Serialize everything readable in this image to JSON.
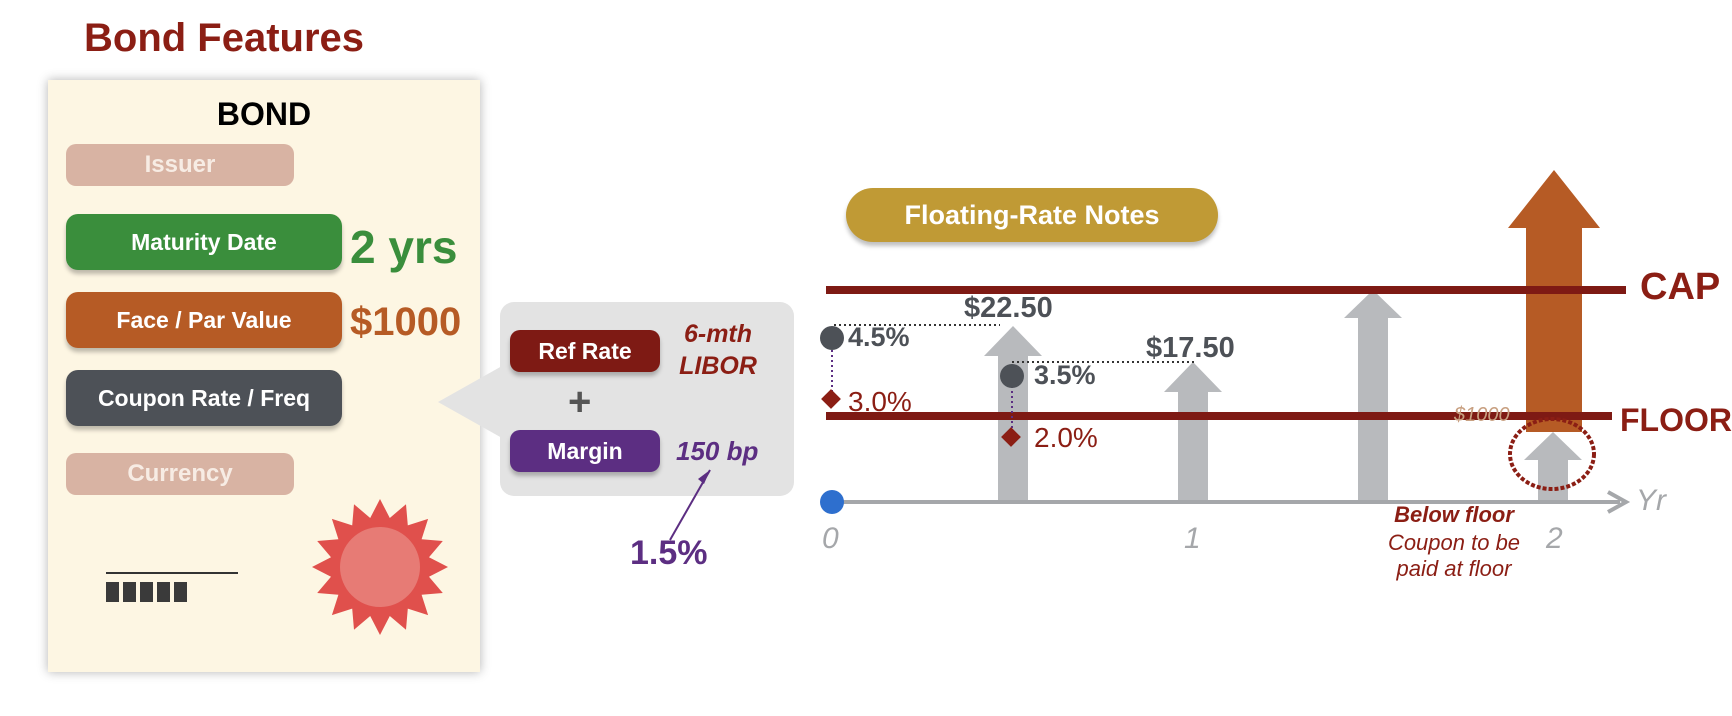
{
  "title": "Bond Features",
  "bond": {
    "heading": "BOND",
    "issuer_label": "Issuer",
    "maturity_label": "Maturity Date",
    "maturity_value": "2 yrs",
    "face_label": "Face / Par Value",
    "face_value": "$1000",
    "coupon_label": "Coupon Rate / Freq",
    "currency_label": "Currency"
  },
  "coupon_formula": {
    "ref_label": "Ref Rate",
    "ref_value": "6-mth LIBOR",
    "plus": "+",
    "margin_label": "Margin",
    "margin_value": "150 bp",
    "margin_pct": "1.5%"
  },
  "frn": {
    "title": "Floating-Rate Notes",
    "cap_label": "CAP",
    "floor_label": "FLOOR",
    "axis_label": "Yr",
    "ticks": [
      "0",
      "1",
      "2"
    ],
    "rate_points": [
      {
        "label": "4.5%",
        "kind": "total"
      },
      {
        "label": "3.0%",
        "kind": "reference"
      },
      {
        "label": "3.5%",
        "kind": "total"
      },
      {
        "label": "2.0%",
        "kind": "reference"
      }
    ],
    "payments": [
      {
        "label": "$22.50"
      },
      {
        "label": "$17.50"
      }
    ],
    "faded_label": "$1000",
    "note_title": "Below floor",
    "note_line1": "Coupon to be",
    "note_line2": "paid at floor"
  },
  "colors": {
    "dark_red": "#8b1e14",
    "green": "#3a8e3c",
    "orange": "#b65b25",
    "slate": "#4d5157",
    "purple": "#5c2e82",
    "gold": "#c09a35",
    "arrow_gray": "#b8babd",
    "blue_dot": "#2e6fce",
    "seal_red": "#e0504c"
  }
}
